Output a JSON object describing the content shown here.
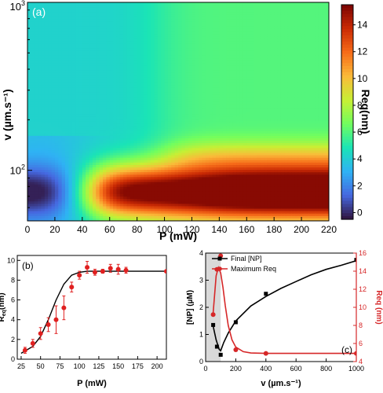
{
  "chart_data": [
    {
      "panel": "(a)",
      "type": "heatmap",
      "xlabel": "P (mW)",
      "ylabel": "v (µm.s⁻¹)",
      "x_ticks": [
        "0",
        "20",
        "40",
        "60",
        "80",
        "100",
        "120",
        "140",
        "160",
        "180",
        "200",
        "220"
      ],
      "y_ticks": [
        "10²",
        "10³"
      ],
      "xlim": [
        0,
        220
      ],
      "ylim": [
        50,
        1000
      ],
      "y_scale": "log",
      "colorbar": {
        "label": "Req(nm)",
        "ticks": [
          "0",
          "2",
          "4",
          "6",
          "8",
          "10",
          "12",
          "14"
        ],
        "range": [
          -0.5,
          15.5
        ],
        "colormap": [
          "#30123b",
          "#4668e0",
          "#2fb2f4",
          "#1ae4b6",
          "#72fe5e",
          "#c8ef34",
          "#faba39",
          "#f66b19",
          "#ca2a04",
          "#7a0403"
        ]
      },
      "values_by_region": [
        {
          "region": "v 50–70, P 0–30",
          "req_nm": 0
        },
        {
          "region": "v 50–120, P 30–60",
          "req_nm": 5
        },
        {
          "region": "v 60–100, P 60–100",
          "req_nm": 12
        },
        {
          "region": "v 70–120, P 140–220",
          "req_nm": 15
        },
        {
          "region": "v 120–170, P 100–220",
          "req_nm": 8
        },
        {
          "region": "v 200–1000, P 0–60",
          "req_nm": 4
        },
        {
          "region": "v 200–1000, P 100–220",
          "req_nm": 6
        }
      ]
    },
    {
      "panel": "(b)",
      "type": "scatter",
      "xlabel": "P (mW)",
      "ylabel": "Req(nm)",
      "x_ticks": [
        "25",
        "50",
        "75",
        "100",
        "125",
        "150",
        "175",
        "200"
      ],
      "y_ticks": [
        "0",
        "2",
        "4",
        "6",
        "8",
        "10"
      ],
      "xlim": [
        20,
        212
      ],
      "ylim": [
        0,
        10.5
      ],
      "points": [
        {
          "x": 30,
          "y": 0.9,
          "err": 0.3
        },
        {
          "x": 40,
          "y": 1.6,
          "err": 0.4
        },
        {
          "x": 50,
          "y": 2.6,
          "err": 0.6
        },
        {
          "x": 60,
          "y": 3.5,
          "err": 0.7
        },
        {
          "x": 70,
          "y": 4.0,
          "err": 1.4
        },
        {
          "x": 80,
          "y": 5.2,
          "err": 1.2
        },
        {
          "x": 90,
          "y": 7.3,
          "err": 0.5
        },
        {
          "x": 100,
          "y": 8.5,
          "err": 0.4
        },
        {
          "x": 110,
          "y": 9.3,
          "err": 0.6
        },
        {
          "x": 120,
          "y": 8.8,
          "err": 0.3
        },
        {
          "x": 130,
          "y": 8.9,
          "err": 0.2
        },
        {
          "x": 140,
          "y": 9.2,
          "err": 0.4
        },
        {
          "x": 150,
          "y": 9.1,
          "err": 0.5
        },
        {
          "x": 160,
          "y": 9.0,
          "err": 0.3
        },
        {
          "x": 212,
          "y": 8.9,
          "err": 0
        }
      ],
      "fit": {
        "x": [
          25,
          40,
          50,
          60,
          70,
          80,
          90,
          100,
          110,
          120,
          140,
          160,
          212
        ],
        "y": [
          0.6,
          1.3,
          2.3,
          4.0,
          6.0,
          7.6,
          8.5,
          8.8,
          8.9,
          8.9,
          8.9,
          8.9,
          8.9
        ]
      }
    },
    {
      "panel": "(c)",
      "type": "line",
      "xlabel": "v (µm.s⁻¹)",
      "ylabel_left": "[NP] (µM)",
      "ylabel_right": "Req (nm)",
      "x_ticks": [
        "0",
        "200",
        "400",
        "600",
        "800",
        "1000"
      ],
      "y_ticks_left": [
        "0",
        "1",
        "2",
        "3",
        "4"
      ],
      "y_ticks_right": [
        "4",
        "6",
        "8",
        "10",
        "12",
        "14",
        "16"
      ],
      "xlim": [
        0,
        1000
      ],
      "ylim_left": [
        0,
        4
      ],
      "ylim_right": [
        4,
        16
      ],
      "shaded_x_range": [
        0,
        100
      ],
      "series": [
        {
          "name": "Final [NP]",
          "color": "#000000",
          "marker": "square",
          "points": [
            [
              50,
              1.35
            ],
            [
              75,
              0.55
            ],
            [
              100,
              0.25
            ],
            [
              200,
              1.45
            ],
            [
              400,
              2.5
            ],
            [
              1000,
              3.75
            ]
          ],
          "fit_x": [
            50,
            70,
            90,
            100,
            120,
            150,
            200,
            300,
            400,
            500,
            600,
            700,
            800,
            900,
            1000
          ],
          "fit_y": [
            1.3,
            0.8,
            0.45,
            0.4,
            0.7,
            1.05,
            1.5,
            2.05,
            2.4,
            2.7,
            2.95,
            3.2,
            3.4,
            3.55,
            3.72
          ]
        },
        {
          "name": "Maximum Req",
          "color": "#d62728",
          "marker": "circle",
          "axis": "right",
          "points": [
            [
              50,
              9.2
            ],
            [
              75,
              14.2
            ],
            [
              100,
              15.7
            ],
            [
              200,
              5.3
            ],
            [
              400,
              4.9
            ],
            [
              1000,
              4.9
            ]
          ],
          "fit_x": [
            50,
            70,
            85,
            100,
            115,
            130,
            150,
            175,
            200,
            250,
            300,
            400,
            600,
            1000
          ],
          "fit_y": [
            9.4,
            13.5,
            14.4,
            13.8,
            12.2,
            10.2,
            8.0,
            6.4,
            5.6,
            5.1,
            4.95,
            4.9,
            4.9,
            4.9
          ]
        }
      ]
    }
  ]
}
